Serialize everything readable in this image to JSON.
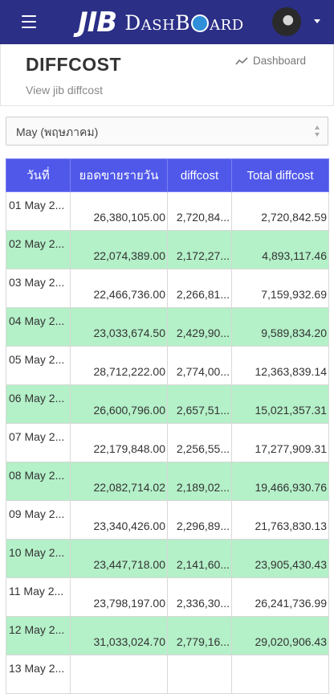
{
  "brand": {
    "logo_primary": "JIB",
    "logo_secondary_pre": "DashB",
    "logo_secondary_post": "ard",
    "bar_color": "#2b2f86"
  },
  "header": {
    "title": "DIFFCOST",
    "subtitle": "View jib diffcost",
    "breadcrumb": "Dashboard"
  },
  "filter": {
    "selected": "May (พฤษภาคม)"
  },
  "table": {
    "header_color": "#5058ea",
    "stripe_color": "#b4f0c8",
    "columns": [
      "วันที่",
      "ยอดขายรายวัน",
      "diffcost",
      "Total diffcost"
    ],
    "rows": [
      [
        "01 May 2...",
        "26,380,105.00",
        "2,720,84...",
        "2,720,842.59"
      ],
      [
        "02 May 2...",
        "22,074,389.00",
        "2,172,27...",
        "4,893,117.46"
      ],
      [
        "03 May 2...",
        "22,466,736.00",
        "2,266,81...",
        "7,159,932.69"
      ],
      [
        "04 May 2...",
        "23,033,674.50",
        "2,429,90...",
        "9,589,834.20"
      ],
      [
        "05 May 2...",
        "28,712,222.00",
        "2,774,00...",
        "12,363,839.14"
      ],
      [
        "06 May 2...",
        "26,600,796.00",
        "2,657,51...",
        "15,021,357.31"
      ],
      [
        "07 May 2...",
        "22,179,848.00",
        "2,256,55...",
        "17,277,909.31"
      ],
      [
        "08 May 2...",
        "22,082,714.02",
        "2,189,02...",
        "19,466,930.76"
      ],
      [
        "09 May 2...",
        "23,340,426.00",
        "2,296,89...",
        "21,763,830.13"
      ],
      [
        "10 May 2...",
        "23,447,718.00",
        "2,141,60...",
        "23,905,430.43"
      ],
      [
        "11 May 2...",
        "23,798,197.00",
        "2,336,30...",
        "26,241,736.99"
      ],
      [
        "12 May 2...",
        "31,033,024.70",
        "2,779,16...",
        "29,020,906.43"
      ],
      [
        "13 May 2...",
        "",
        "",
        ""
      ]
    ]
  }
}
